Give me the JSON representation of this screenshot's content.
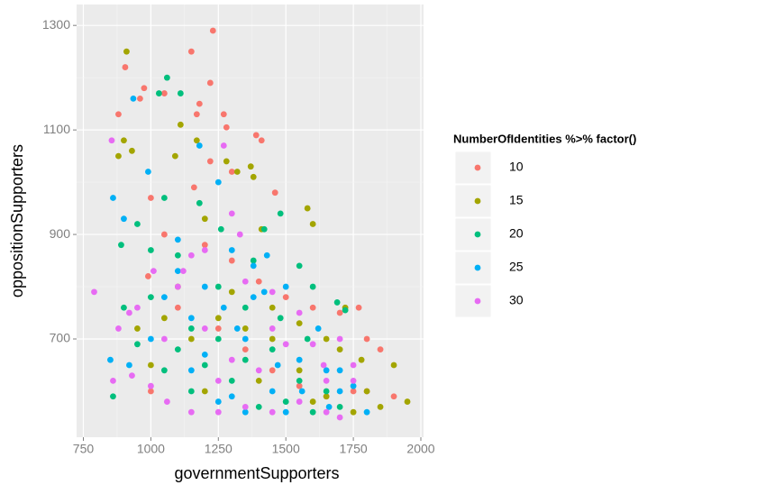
{
  "chart_data": {
    "type": "scatter",
    "x_label": "governmentSupporters",
    "y_label": "oppositionSupporters",
    "legend_title": "NumberOfIdentities %>% factor()",
    "xlim": [
      725,
      2010
    ],
    "ylim": [
      512,
      1340
    ],
    "xticks": [
      750,
      1000,
      1250,
      1500,
      1750,
      2000
    ],
    "yticks": [
      700,
      900,
      1100,
      1300
    ],
    "grid": true,
    "series": [
      {
        "name": "10",
        "color": "#F8766D",
        "x": [
          880,
          905,
          960,
          975,
          1050,
          1150,
          1230,
          1220,
          1180,
          1170,
          1270,
          1280,
          1390,
          1410,
          1000,
          1160,
          1220,
          1300,
          1460,
          1050,
          1200,
          1300,
          1400,
          1500,
          1600,
          1700,
          1770,
          1800,
          1850,
          1750,
          1800,
          1900,
          990,
          1100,
          1250,
          1350,
          1450,
          1550,
          1650,
          1000
        ],
        "y": [
          1130,
          1220,
          1160,
          1180,
          1170,
          1250,
          1290,
          1190,
          1150,
          1130,
          1130,
          1105,
          1090,
          1080,
          970,
          990,
          1040,
          1020,
          980,
          900,
          880,
          850,
          810,
          780,
          760,
          750,
          760,
          700,
          680,
          600,
          600,
          590,
          820,
          760,
          720,
          680,
          640,
          610,
          590,
          600
        ]
      },
      {
        "name": "15",
        "color": "#A3A500",
        "x": [
          910,
          930,
          900,
          880,
          1110,
          1090,
          1280,
          1370,
          1380,
          1320,
          1170,
          1410,
          1580,
          1600,
          1200,
          1100,
          1300,
          1450,
          1550,
          1650,
          1700,
          1780,
          1900,
          1950,
          1850,
          1750,
          1650,
          1550,
          1450,
          1350,
          1250,
          1150,
          1050,
          950,
          1000,
          1200,
          1400,
          1600,
          1800,
          1720
        ],
        "y": [
          1250,
          1060,
          1080,
          1050,
          1110,
          1050,
          1040,
          1030,
          1010,
          1020,
          1080,
          910,
          950,
          920,
          930,
          800,
          790,
          760,
          730,
          700,
          680,
          660,
          650,
          580,
          570,
          560,
          590,
          640,
          700,
          720,
          740,
          700,
          740,
          720,
          650,
          600,
          620,
          580,
          600,
          760
        ]
      },
      {
        "name": "20",
        "color": "#00BF7D",
        "x": [
          1060,
          1030,
          1110,
          1050,
          1180,
          950,
          890,
          1000,
          1100,
          1260,
          1420,
          1480,
          1380,
          1550,
          1600,
          1690,
          1720,
          860,
          900,
          1000,
          1150,
          1250,
          1350,
          1450,
          1550,
          1650,
          1050,
          1150,
          1300,
          1400,
          1500,
          1600,
          1700,
          1250,
          1350,
          950,
          1100,
          1200,
          1480,
          1580
        ],
        "y": [
          1200,
          1170,
          1170,
          970,
          960,
          920,
          880,
          870,
          860,
          910,
          910,
          940,
          850,
          840,
          800,
          770,
          755,
          590,
          760,
          780,
          720,
          700,
          660,
          680,
          620,
          600,
          640,
          600,
          620,
          570,
          580,
          560,
          570,
          800,
          760,
          690,
          680,
          650,
          740,
          700
        ]
      },
      {
        "name": "25",
        "color": "#00B0F6",
        "x": [
          935,
          860,
          900,
          990,
          1180,
          1250,
          1100,
          1300,
          1380,
          1430,
          1500,
          1380,
          1420,
          1620,
          1700,
          1750,
          1800,
          1050,
          1150,
          1270,
          1350,
          1470,
          1560,
          1660,
          850,
          920,
          1000,
          1200,
          1300,
          1450,
          1550,
          1650,
          1150,
          1250,
          1350,
          1500,
          1100,
          1200,
          1320,
          1700
        ],
        "y": [
          1160,
          970,
          930,
          1020,
          1070,
          1000,
          890,
          870,
          840,
          860,
          800,
          780,
          790,
          720,
          640,
          610,
          560,
          780,
          740,
          760,
          700,
          650,
          600,
          570,
          660,
          650,
          700,
          670,
          590,
          600,
          660,
          640,
          640,
          580,
          560,
          560,
          830,
          800,
          720,
          600
        ]
      },
      {
        "name": "30",
        "color": "#E76BF3",
        "x": [
          855,
          790,
          880,
          920,
          1010,
          1120,
          1270,
          1300,
          1200,
          1150,
          1330,
          1100,
          1350,
          1450,
          1550,
          1700,
          1750,
          1640,
          860,
          930,
          1000,
          1060,
          1150,
          1250,
          1350,
          1450,
          1550,
          1650,
          1700,
          1650,
          1200,
          1300,
          1400,
          1050,
          950,
          1500,
          1600,
          1250,
          1450,
          1750
        ],
        "y": [
          1080,
          790,
          720,
          750,
          830,
          830,
          1070,
          940,
          870,
          860,
          900,
          800,
          810,
          790,
          750,
          700,
          620,
          650,
          620,
          630,
          610,
          580,
          560,
          560,
          570,
          560,
          580,
          560,
          550,
          620,
          720,
          660,
          640,
          700,
          760,
          690,
          690,
          620,
          720,
          650
        ]
      }
    ]
  }
}
